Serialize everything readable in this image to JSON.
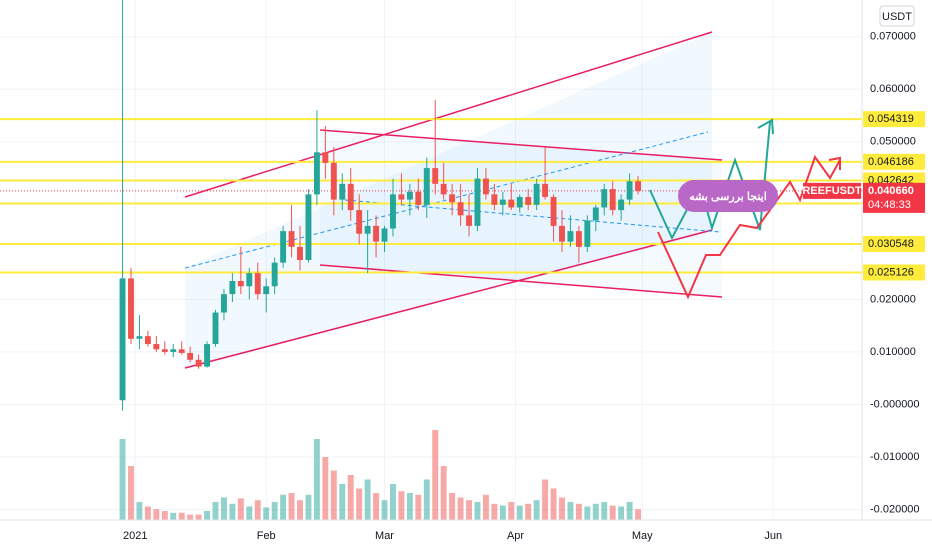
{
  "chart_data": {
    "type": "candlestick",
    "symbol": "REEFUSDT",
    "currency": "USDT",
    "countdown": "04:48:33",
    "price_label": {
      "value": 0.04066,
      "label": "0.040660"
    },
    "annotation": "اینجا بررسی بشه",
    "levels": [
      0.054319,
      0.046186,
      0.042642,
      0.038263,
      0.030548,
      0.025126
    ],
    "level_color": "#ffeb3b",
    "up_color": "#26a69a",
    "down_color": "#ef5350",
    "ylim": [
      -0.022,
      0.077
    ],
    "yticks": [
      {
        "value": 0.07,
        "label": "0.070000"
      },
      {
        "value": 0.06,
        "label": "0.060000"
      },
      {
        "value": 0.05,
        "label": "0.050000"
      },
      {
        "value": 0.02,
        "label": "0.020000"
      },
      {
        "value": 0.01,
        "label": "0.010000"
      },
      {
        "value": 0,
        "label": "-0.000000"
      },
      {
        "value": -0.01,
        "label": "-0.010000"
      },
      {
        "value": -0.02,
        "label": "-0.020000"
      }
    ],
    "xlim": [
      -32,
      172
    ],
    "xticks": [
      {
        "value": 0,
        "label": "2021"
      },
      {
        "value": 31,
        "label": "Feb"
      },
      {
        "value": 59,
        "label": "Mar"
      },
      {
        "value": 90,
        "label": "Apr"
      },
      {
        "value": 120,
        "label": "May"
      },
      {
        "value": 151,
        "label": "Jun"
      }
    ],
    "x": [
      -3,
      -1,
      1,
      3,
      5,
      7,
      9,
      11,
      13,
      15,
      17,
      19,
      21,
      23,
      25,
      27,
      29,
      31,
      33,
      35,
      37,
      39,
      41,
      43,
      45,
      47,
      49,
      51,
      53,
      55,
      57,
      59,
      61,
      63,
      65,
      67,
      69,
      71,
      73,
      75,
      77,
      79,
      81,
      83,
      85,
      87,
      89,
      91,
      93,
      95,
      97,
      99,
      101,
      103,
      105,
      107,
      109,
      111,
      113,
      115,
      117,
      119
    ],
    "open": [
      0.0008,
      0.024,
      0.0125,
      0.013,
      0.0115,
      0.0105,
      0.01,
      0.0105,
      0.0098,
      0.0085,
      0.0072,
      0.0115,
      0.0175,
      0.021,
      0.0235,
      0.0225,
      0.025,
      0.021,
      0.0225,
      0.027,
      0.033,
      0.03,
      0.0275,
      0.04,
      0.048,
      0.046,
      0.039,
      0.042,
      0.037,
      0.0325,
      0.034,
      0.031,
      0.0335,
      0.04,
      0.039,
      0.0405,
      0.038,
      0.045,
      0.042,
      0.04,
      0.0385,
      0.036,
      0.034,
      0.043,
      0.04,
      0.038,
      0.039,
      0.0375,
      0.0395,
      0.038,
      0.042,
      0.0395,
      0.034,
      0.031,
      0.033,
      0.03,
      0.035,
      0.0375,
      0.041,
      0.037,
      0.039,
      0.0425
    ],
    "high": [
      0.078,
      0.026,
      0.017,
      0.014,
      0.013,
      0.012,
      0.0115,
      0.012,
      0.011,
      0.0095,
      0.012,
      0.018,
      0.022,
      0.025,
      0.03,
      0.026,
      0.027,
      0.024,
      0.028,
      0.034,
      0.038,
      0.034,
      0.041,
      0.056,
      0.053,
      0.049,
      0.044,
      0.045,
      0.04,
      0.037,
      0.036,
      0.034,
      0.043,
      0.044,
      0.042,
      0.043,
      0.047,
      0.058,
      0.046,
      0.042,
      0.042,
      0.04,
      0.045,
      0.045,
      0.042,
      0.0405,
      0.042,
      0.04,
      0.041,
      0.043,
      0.049,
      0.04,
      0.037,
      0.036,
      0.034,
      0.036,
      0.038,
      0.042,
      0.0425,
      0.04,
      0.044,
      0.0435
    ],
    "low": [
      -0.0012,
      0.0115,
      0.0105,
      0.011,
      0.01,
      0.0095,
      0.009,
      0.0095,
      0.008,
      0.0068,
      0.007,
      0.011,
      0.016,
      0.0195,
      0.021,
      0.02,
      0.02,
      0.0175,
      0.021,
      0.026,
      0.028,
      0.0255,
      0.027,
      0.038,
      0.043,
      0.036,
      0.037,
      0.035,
      0.0305,
      0.025,
      0.028,
      0.029,
      0.032,
      0.038,
      0.036,
      0.037,
      0.0355,
      0.04,
      0.039,
      0.036,
      0.034,
      0.032,
      0.033,
      0.039,
      0.037,
      0.036,
      0.037,
      0.0365,
      0.037,
      0.037,
      0.039,
      0.031,
      0.029,
      0.03,
      0.027,
      0.029,
      0.033,
      0.036,
      0.036,
      0.035,
      0.038,
      0.04
    ],
    "close": [
      0.024,
      0.0125,
      0.013,
      0.0115,
      0.0105,
      0.01,
      0.0105,
      0.0098,
      0.0085,
      0.0072,
      0.0115,
      0.0175,
      0.021,
      0.0235,
      0.0225,
      0.025,
      0.021,
      0.0225,
      0.027,
      0.033,
      0.03,
      0.0275,
      0.04,
      0.048,
      0.046,
      0.039,
      0.042,
      0.037,
      0.0325,
      0.034,
      0.031,
      0.0335,
      0.04,
      0.039,
      0.0405,
      0.038,
      0.045,
      0.042,
      0.04,
      0.0385,
      0.036,
      0.034,
      0.043,
      0.04,
      0.038,
      0.039,
      0.0375,
      0.0395,
      0.038,
      0.042,
      0.0395,
      0.034,
      0.031,
      0.033,
      0.03,
      0.035,
      0.0375,
      0.041,
      0.037,
      0.039,
      0.0425,
      0.04066
    ],
    "volume": [
      90,
      60,
      20,
      15,
      12,
      10,
      8,
      8,
      6,
      6,
      10,
      20,
      25,
      18,
      24,
      15,
      22,
      14,
      20,
      28,
      30,
      22,
      28,
      90,
      70,
      55,
      40,
      50,
      35,
      45,
      30,
      22,
      40,
      32,
      30,
      28,
      45,
      100,
      60,
      30,
      25,
      22,
      20,
      28,
      18,
      16,
      20,
      16,
      18,
      22,
      45,
      35,
      25,
      20,
      18,
      15,
      18,
      20,
      16,
      15,
      20,
      12
    ]
  }
}
